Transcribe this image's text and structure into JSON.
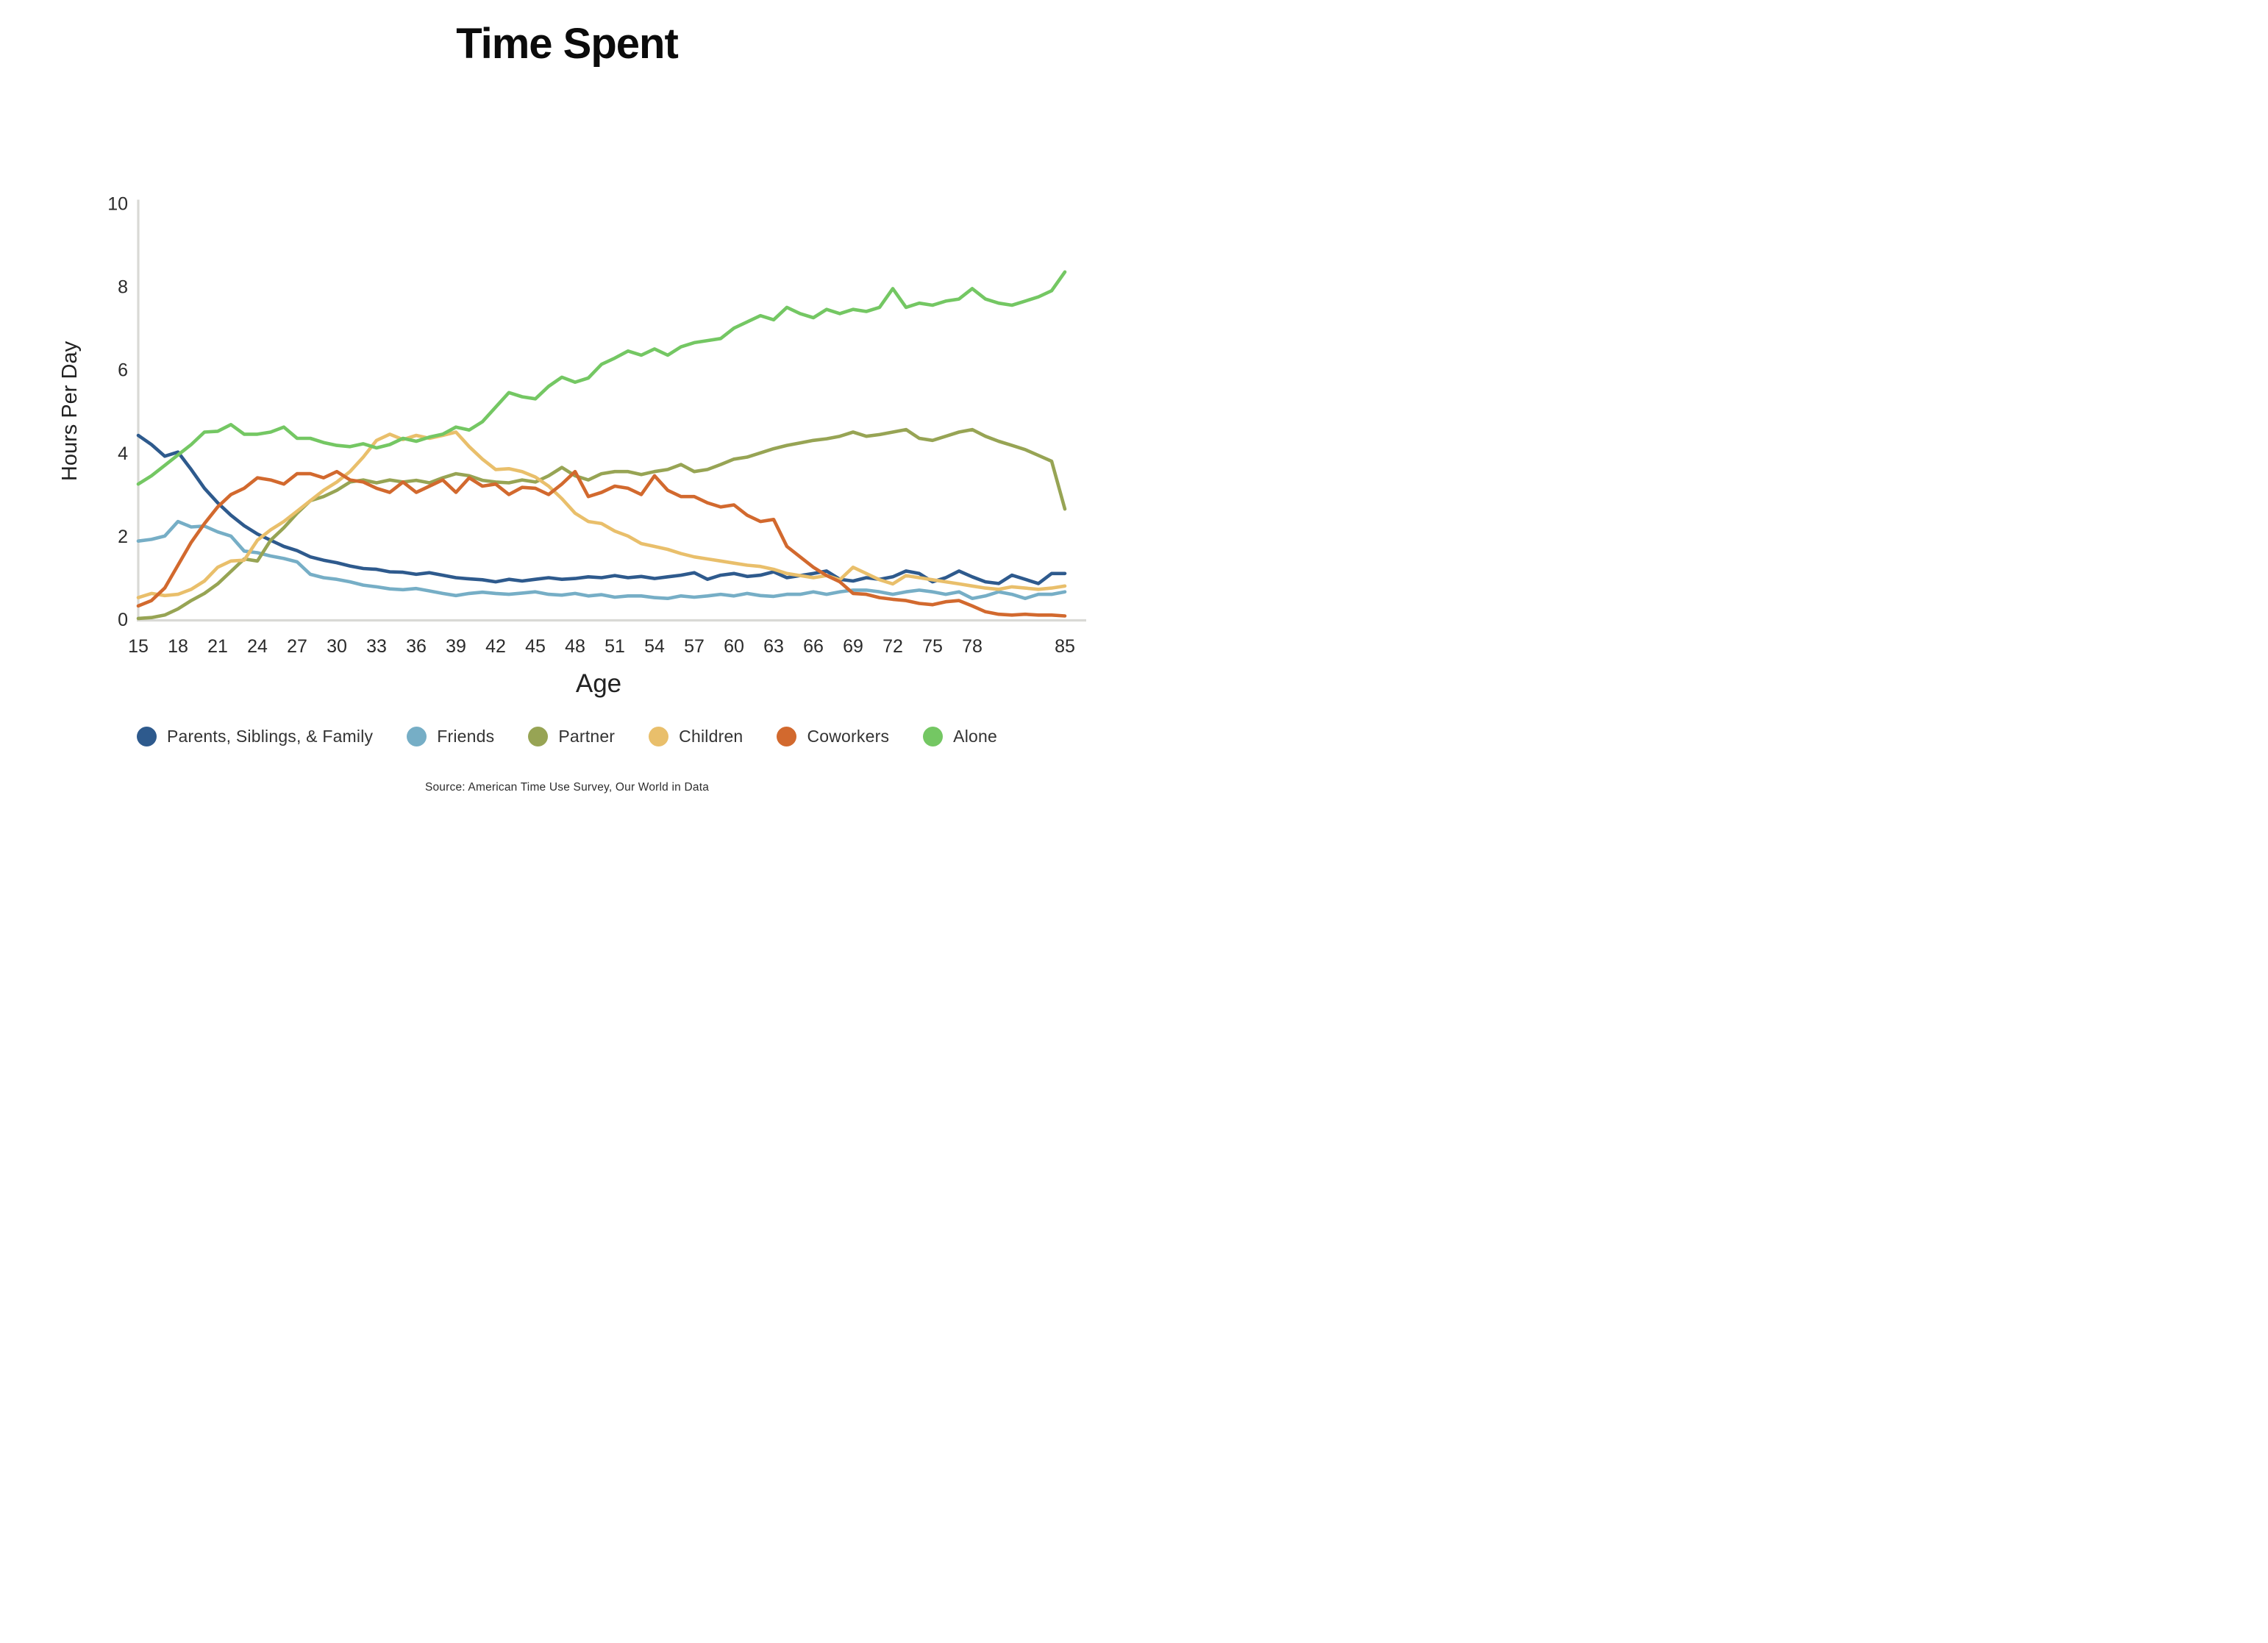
{
  "page": {
    "title": "Time Spent",
    "source": "Source: American Time Use Survey, Our World in Data"
  },
  "chart_data": {
    "type": "line",
    "title": "Time Spent",
    "xlabel": "Age",
    "ylabel": "Hours Per Day",
    "ylim": [
      0,
      10
    ],
    "y_ticks": [
      0,
      2,
      4,
      6,
      8,
      10
    ],
    "x_tick_labels": [
      15,
      18,
      21,
      24,
      27,
      30,
      33,
      36,
      39,
      42,
      45,
      48,
      51,
      54,
      57,
      60,
      63,
      66,
      69,
      72,
      75,
      78,
      85
    ],
    "grid": false,
    "legend_position": "bottom",
    "axis_color": "#d9d9d5",
    "tick_text_color": "#2b2b2b",
    "x": [
      15,
      16,
      17,
      18,
      19,
      20,
      21,
      22,
      23,
      24,
      25,
      26,
      27,
      28,
      29,
      30,
      31,
      32,
      33,
      34,
      35,
      36,
      37,
      38,
      39,
      40,
      41,
      42,
      43,
      44,
      45,
      46,
      47,
      48,
      49,
      50,
      51,
      52,
      53,
      54,
      55,
      56,
      57,
      58,
      59,
      60,
      61,
      62,
      63,
      64,
      65,
      66,
      67,
      68,
      69,
      70,
      71,
      72,
      73,
      74,
      75,
      76,
      77,
      78,
      79,
      80,
      81,
      82,
      83,
      84,
      85
    ],
    "series": [
      {
        "name": "Parents, Siblings, & Family",
        "color": "#2e5a8d",
        "values": [
          4.42,
          4.2,
          3.92,
          4.02,
          3.6,
          3.15,
          2.8,
          2.5,
          2.25,
          2.05,
          1.9,
          1.75,
          1.65,
          1.5,
          1.42,
          1.36,
          1.28,
          1.22,
          1.2,
          1.14,
          1.13,
          1.08,
          1.12,
          1.06,
          1.0,
          0.97,
          0.95,
          0.9,
          0.96,
          0.92,
          0.96,
          1.0,
          0.96,
          0.98,
          1.02,
          1.0,
          1.05,
          1.0,
          1.03,
          0.98,
          1.02,
          1.06,
          1.12,
          0.96,
          1.06,
          1.1,
          1.03,
          1.06,
          1.14,
          1.0,
          1.05,
          1.1,
          1.16,
          0.96,
          0.92,
          1.0,
          0.96,
          1.02,
          1.16,
          1.1,
          0.9,
          1.0,
          1.16,
          1.02,
          0.9,
          0.86,
          1.06,
          0.96,
          0.86,
          1.1,
          1.1
        ]
      },
      {
        "name": "Friends",
        "color": "#76aec6",
        "values": [
          1.88,
          1.92,
          2.0,
          2.35,
          2.22,
          2.24,
          2.1,
          2.0,
          1.64,
          1.6,
          1.52,
          1.46,
          1.38,
          1.08,
          1.0,
          0.96,
          0.9,
          0.82,
          0.78,
          0.73,
          0.71,
          0.74,
          0.68,
          0.62,
          0.57,
          0.62,
          0.65,
          0.62,
          0.6,
          0.63,
          0.66,
          0.6,
          0.58,
          0.62,
          0.56,
          0.59,
          0.53,
          0.56,
          0.56,
          0.52,
          0.5,
          0.56,
          0.53,
          0.56,
          0.6,
          0.56,
          0.62,
          0.57,
          0.55,
          0.6,
          0.6,
          0.66,
          0.6,
          0.66,
          0.7,
          0.7,
          0.66,
          0.6,
          0.66,
          0.7,
          0.66,
          0.6,
          0.66,
          0.5,
          0.56,
          0.66,
          0.6,
          0.5,
          0.6,
          0.6,
          0.66
        ]
      },
      {
        "name": "Partner",
        "color": "#97a454",
        "values": [
          0.02,
          0.04,
          0.1,
          0.25,
          0.45,
          0.62,
          0.85,
          1.15,
          1.45,
          1.4,
          1.9,
          2.2,
          2.55,
          2.85,
          2.95,
          3.1,
          3.3,
          3.35,
          3.28,
          3.35,
          3.3,
          3.34,
          3.28,
          3.4,
          3.5,
          3.45,
          3.34,
          3.3,
          3.28,
          3.35,
          3.3,
          3.45,
          3.65,
          3.45,
          3.35,
          3.5,
          3.55,
          3.55,
          3.48,
          3.55,
          3.6,
          3.72,
          3.55,
          3.6,
          3.72,
          3.85,
          3.9,
          4.0,
          4.1,
          4.18,
          4.24,
          4.3,
          4.34,
          4.4,
          4.5,
          4.4,
          4.44,
          4.5,
          4.56,
          4.35,
          4.3,
          4.4,
          4.5,
          4.56,
          4.4,
          4.28,
          4.18,
          4.08,
          3.94,
          3.8,
          2.65
        ]
      },
      {
        "name": "Children",
        "color": "#e9bf6b",
        "values": [
          0.52,
          0.62,
          0.57,
          0.6,
          0.72,
          0.92,
          1.25,
          1.4,
          1.42,
          1.9,
          2.15,
          2.35,
          2.6,
          2.85,
          3.1,
          3.3,
          3.55,
          3.9,
          4.3,
          4.45,
          4.32,
          4.42,
          4.35,
          4.42,
          4.5,
          4.15,
          3.85,
          3.6,
          3.62,
          3.55,
          3.42,
          3.2,
          2.9,
          2.55,
          2.35,
          2.3,
          2.12,
          2.0,
          1.82,
          1.75,
          1.68,
          1.58,
          1.5,
          1.45,
          1.4,
          1.35,
          1.3,
          1.27,
          1.2,
          1.1,
          1.05,
          1.0,
          1.05,
          0.95,
          1.25,
          1.1,
          0.95,
          0.85,
          1.05,
          1.0,
          0.95,
          0.9,
          0.85,
          0.8,
          0.75,
          0.72,
          0.78,
          0.75,
          0.72,
          0.75,
          0.8
        ]
      },
      {
        "name": "Coworkers",
        "color": "#d2692e",
        "values": [
          0.32,
          0.45,
          0.75,
          1.3,
          1.85,
          2.3,
          2.7,
          3.0,
          3.15,
          3.4,
          3.35,
          3.25,
          3.5,
          3.5,
          3.4,
          3.55,
          3.35,
          3.3,
          3.15,
          3.05,
          3.3,
          3.05,
          3.2,
          3.35,
          3.05,
          3.4,
          3.2,
          3.25,
          3.0,
          3.17,
          3.15,
          3.0,
          3.25,
          3.55,
          2.95,
          3.05,
          3.2,
          3.15,
          3.0,
          3.45,
          3.1,
          2.95,
          2.95,
          2.8,
          2.7,
          2.75,
          2.5,
          2.35,
          2.4,
          1.75,
          1.5,
          1.25,
          1.05,
          0.9,
          0.62,
          0.6,
          0.52,
          0.48,
          0.45,
          0.38,
          0.35,
          0.42,
          0.45,
          0.32,
          0.18,
          0.12,
          0.1,
          0.12,
          0.1,
          0.1,
          0.08
        ]
      },
      {
        "name": "Alone",
        "color": "#74c763",
        "values": [
          3.25,
          3.45,
          3.7,
          3.95,
          4.2,
          4.5,
          4.52,
          4.68,
          4.45,
          4.45,
          4.5,
          4.62,
          4.35,
          4.35,
          4.25,
          4.18,
          4.15,
          4.22,
          4.12,
          4.2,
          4.35,
          4.28,
          4.38,
          4.45,
          4.62,
          4.55,
          4.75,
          5.1,
          5.45,
          5.35,
          5.3,
          5.6,
          5.82,
          5.7,
          5.8,
          6.13,
          6.28,
          6.45,
          6.35,
          6.5,
          6.35,
          6.55,
          6.65,
          6.7,
          6.75,
          7.0,
          7.15,
          7.3,
          7.2,
          7.5,
          7.35,
          7.25,
          7.45,
          7.35,
          7.45,
          7.4,
          7.5,
          7.95,
          7.5,
          7.6,
          7.55,
          7.65,
          7.7,
          7.95,
          7.7,
          7.6,
          7.55,
          7.65,
          7.75,
          7.9,
          8.35
        ]
      }
    ]
  }
}
